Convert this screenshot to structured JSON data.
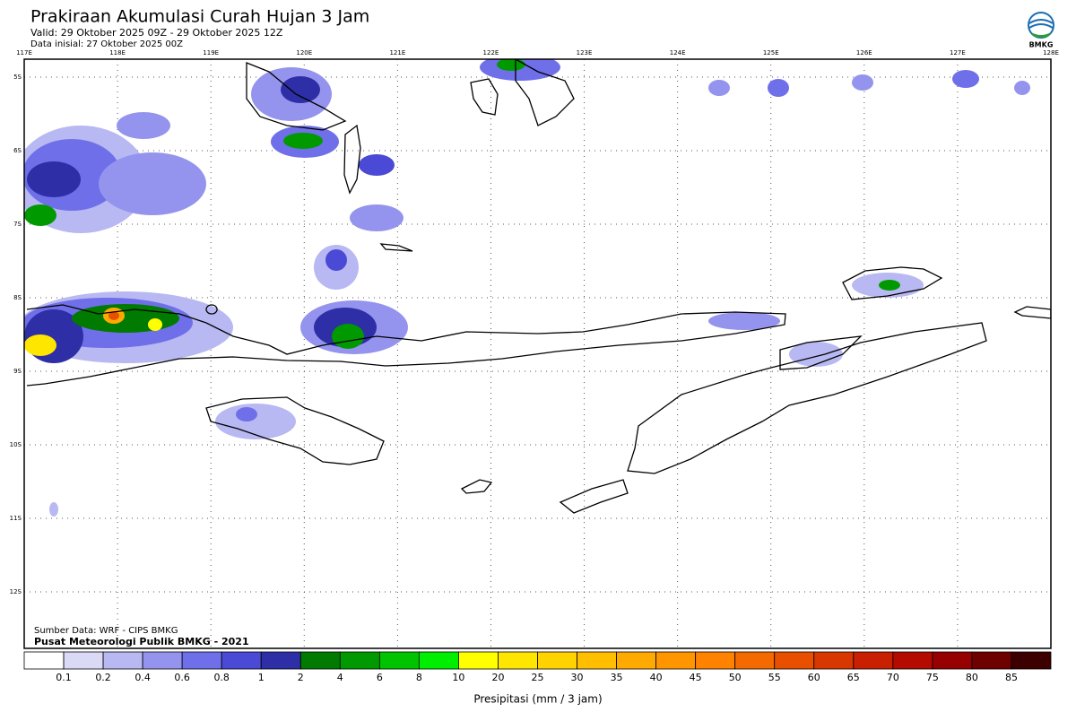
{
  "header": {
    "title": "Prakiraan Akumulasi Curah Hujan 3 Jam",
    "valid": "Valid: 29 Oktober 2025 09Z - 29 Oktober 2025 12Z",
    "initial": "Data inisial: 27 Oktober 2025 00Z"
  },
  "logo": {
    "text": "BMKG"
  },
  "map": {
    "lon_labels": [
      "117E",
      "118E",
      "119E",
      "120E",
      "121E",
      "122E",
      "123E",
      "124E",
      "125E",
      "126E",
      "127E",
      "128E"
    ],
    "lat_labels": [
      "5S",
      "6S",
      "7S",
      "8S",
      "9S",
      "10S",
      "11S",
      "12S"
    ]
  },
  "credits": [
    "Sumber Data: WRF - CIPS BMKG",
    "Pusat Meteorologi Publik BMKG - 2021"
  ],
  "legend": {
    "title": "Presipitasi (mm / 3 jam)",
    "labels": [
      "0.1",
      "0.2",
      "0.4",
      "0.6",
      "0.8",
      "1",
      "2",
      "4",
      "6",
      "8",
      "10",
      "20",
      "25",
      "30",
      "35",
      "40",
      "45",
      "50",
      "55",
      "60",
      "65",
      "70",
      "75",
      "80",
      "85"
    ],
    "colors": [
      "#ffffff",
      "#dadaf7",
      "#b8b8f2",
      "#9494ee",
      "#6f6fe9",
      "#4a4ad6",
      "#2e2ea6",
      "#007a00",
      "#009a00",
      "#00c400",
      "#00ee00",
      "#ffff00",
      "#ffe600",
      "#ffd200",
      "#ffbe00",
      "#ffaa00",
      "#ff9600",
      "#ff8200",
      "#f56a00",
      "#e85000",
      "#d83800",
      "#c82000",
      "#b40a00",
      "#960000",
      "#6e0000",
      "#3c0000"
    ]
  }
}
